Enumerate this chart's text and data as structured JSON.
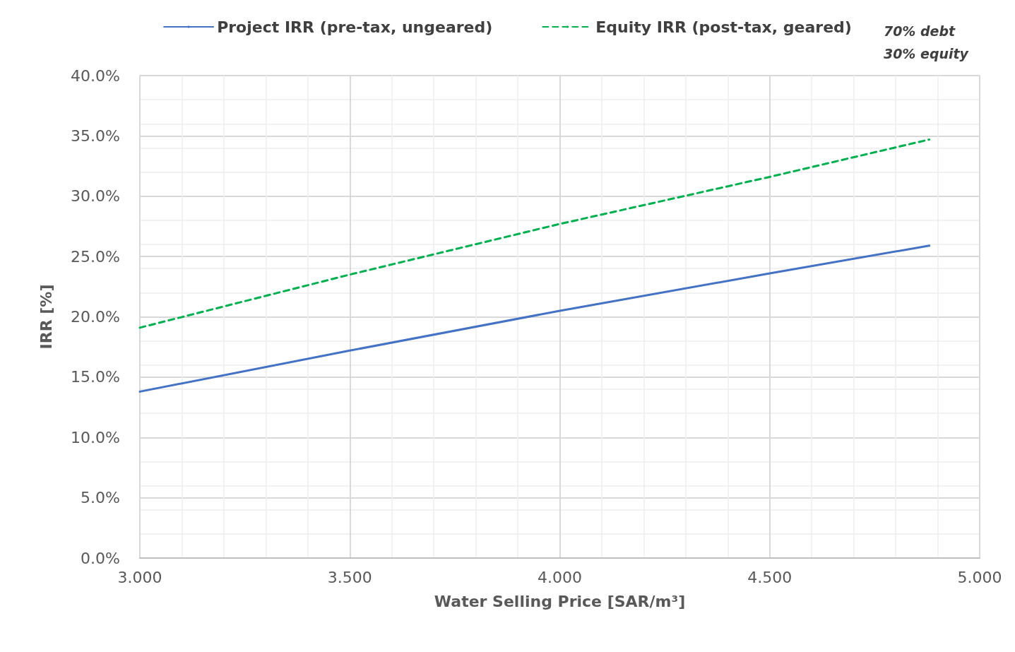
{
  "chart_data": {
    "type": "line",
    "xlabel": "Water Selling Price [SAR/m³]",
    "ylabel": "IRR [%]",
    "annotations": [
      "70% debt\n30% equity"
    ],
    "series": [
      {
        "name": "Project IRR (pre-tax, ungeared)",
        "color": "#4472c4",
        "line_style": "solid",
        "x": [
          3.0,
          3.5,
          4.0,
          4.5,
          4.88
        ],
        "values": [
          13.8,
          17.2,
          20.5,
          23.6,
          25.9
        ]
      },
      {
        "name": "Equity IRR (post-tax, geared)",
        "color": "#00b050",
        "line_style": "dashed",
        "x": [
          3.0,
          3.5,
          4.0,
          4.5,
          4.88
        ],
        "values": [
          19.1,
          23.5,
          27.7,
          31.6,
          34.7
        ]
      }
    ],
    "xlim": [
      3.0,
      5.0
    ],
    "xticks": [
      {
        "value": 3.0,
        "label": "3.000"
      },
      {
        "value": 3.5,
        "label": "3.500"
      },
      {
        "value": 4.0,
        "label": "4.000"
      },
      {
        "value": 4.5,
        "label": "4.500"
      },
      {
        "value": 5.0,
        "label": "5.000"
      }
    ],
    "ylim": [
      0,
      40
    ],
    "yticks": [
      {
        "value": 0,
        "label": "0.0%"
      },
      {
        "value": 5,
        "label": "5.0%"
      },
      {
        "value": 10,
        "label": "10.0%"
      },
      {
        "value": 15,
        "label": "15.0%"
      },
      {
        "value": 20,
        "label": "20.0%"
      },
      {
        "value": 25,
        "label": "25.0%"
      },
      {
        "value": 30,
        "label": "30.0%"
      },
      {
        "value": 35,
        "label": "35.0%"
      },
      {
        "value": 40,
        "label": "40.0%"
      }
    ],
    "grid": true,
    "legend": "top",
    "marker": "none"
  }
}
